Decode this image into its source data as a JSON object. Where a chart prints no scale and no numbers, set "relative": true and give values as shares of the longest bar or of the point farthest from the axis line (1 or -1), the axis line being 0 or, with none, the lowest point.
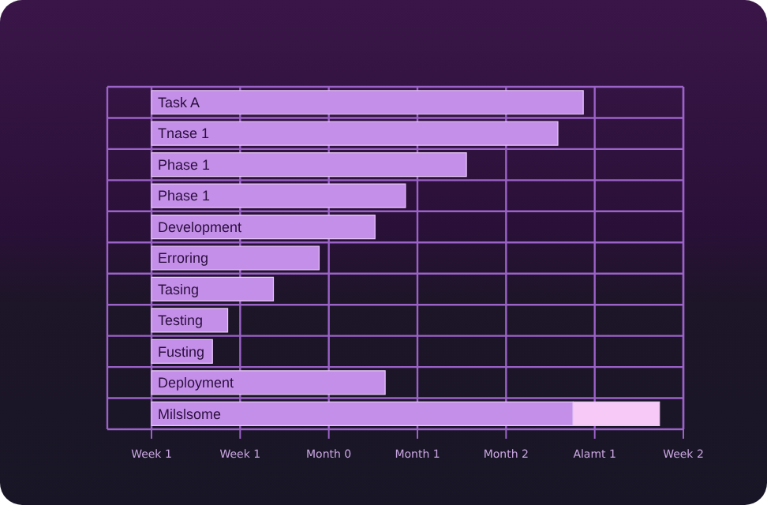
{
  "chart_data": {
    "type": "bar",
    "orientation": "horizontal",
    "stacked": true,
    "grid": true,
    "relative": true,
    "categories": [
      "Task A",
      "Tnase 1",
      "Phase 1",
      "Phase 1",
      "Development",
      "Erroring",
      "Tasing",
      "Testing",
      "Fusting",
      "Deployment",
      "Milslsome"
    ],
    "series": [
      {
        "color": "#c48fe8",
        "values": [
          0.85,
          0.8,
          0.62,
          0.5,
          0.44,
          0.33,
          0.24,
          0.15,
          0.12,
          0.46,
          0.83
        ]
      },
      {
        "color": "#f6c9f6",
        "values": [
          null,
          null,
          null,
          null,
          null,
          null,
          null,
          null,
          null,
          null,
          0.17
        ]
      }
    ],
    "annotations": [
      "Week 1",
      "Week 1",
      "Month 0",
      "Month 1",
      "Month 2",
      "Alamt 1",
      "Week 2"
    ]
  }
}
